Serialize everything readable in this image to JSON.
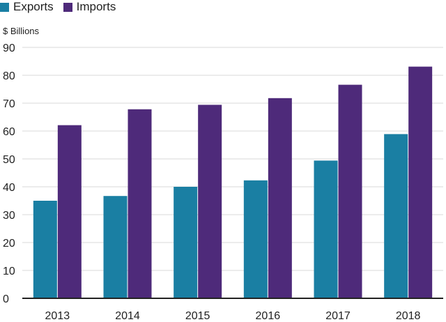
{
  "chart_data": {
    "type": "bar",
    "title": "",
    "ylabel": "$ Billions",
    "xlabel": "",
    "categories": [
      "2013",
      "2014",
      "2015",
      "2016",
      "2017",
      "2018"
    ],
    "series": [
      {
        "name": "Exports",
        "color": "#1a7fa3",
        "values": [
          35.0,
          36.7,
          40.0,
          42.3,
          49.4,
          58.9
        ]
      },
      {
        "name": "Imports",
        "color": "#4e2a7a",
        "values": [
          62.1,
          67.8,
          69.4,
          71.8,
          76.6,
          83.1
        ]
      }
    ],
    "ylim": [
      0,
      90
    ],
    "yticks": [
      0,
      10,
      20,
      30,
      40,
      50,
      60,
      70,
      80,
      90
    ],
    "grid": true,
    "legend_position": "top-left"
  }
}
